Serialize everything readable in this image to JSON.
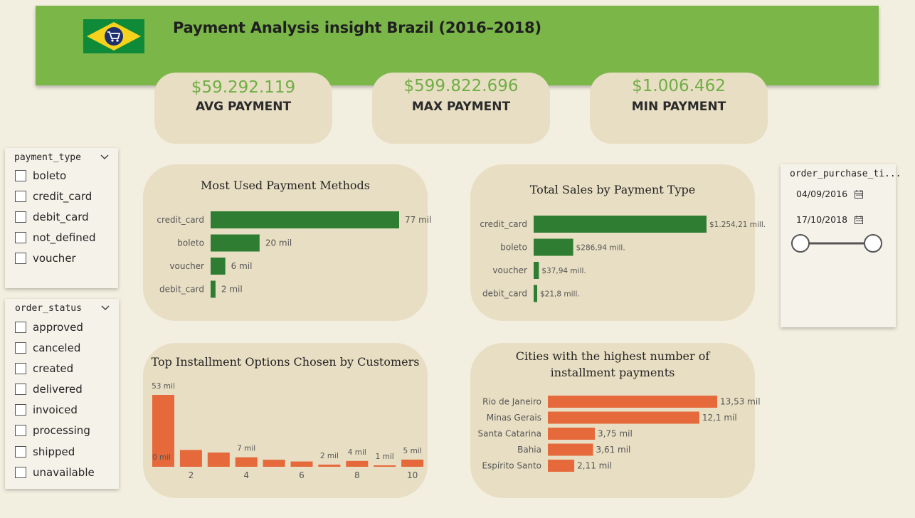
{
  "header": {
    "title": "Payment Analysis insight Brazil (2016–2018)",
    "flag_icon": "brazil-flag-shopping-cart-icon",
    "colors": {
      "banner": "#7ab648",
      "kpi_value": "#6fae45",
      "bar_green": "#2e7d32",
      "bar_orange": "#e5693a",
      "card": "#e8dec3",
      "page": "#f3efe0"
    }
  },
  "kpis": [
    {
      "value": "$59.292.119",
      "label": "AVG PAYMENT"
    },
    {
      "value": "$599.822.696",
      "label": "MAX PAYMENT"
    },
    {
      "value": "$1.006.462",
      "label": "MIN PAYMENT"
    }
  ],
  "filters": {
    "payment_type": {
      "title": "payment_type",
      "options": [
        "boleto",
        "credit_card",
        "debit_card",
        "not_defined",
        "voucher"
      ]
    },
    "order_status": {
      "title": "order_status",
      "options": [
        "approved",
        "canceled",
        "created",
        "delivered",
        "invoiced",
        "processing",
        "shipped",
        "unavailable"
      ]
    },
    "date_range": {
      "title": "order_purchase_ti...",
      "start": "04/09/2016",
      "end": "17/10/2018",
      "calendar_icon": "calendar-icon",
      "slider_position": [
        0,
        1
      ]
    }
  },
  "chart_data": [
    {
      "type": "bar",
      "orientation": "horizontal",
      "title": "Most Used Payment Methods",
      "categories": [
        "credit_card",
        "boleto",
        "voucher",
        "debit_card"
      ],
      "values": [
        77,
        20,
        6,
        2
      ],
      "data_labels": [
        "77 mil",
        "20 mil",
        "6 mil",
        "2 mil"
      ],
      "color": "#2e7d32"
    },
    {
      "type": "bar",
      "orientation": "horizontal",
      "title": "Total Sales by Payment Type",
      "categories": [
        "credit_card",
        "boleto",
        "voucher",
        "debit_card"
      ],
      "values": [
        1254.21,
        286.94,
        37.94,
        21.8
      ],
      "data_labels": [
        "$1.254,21 mill.",
        "$286,94 mill.",
        "$37,94 mill.",
        "$21,8 mill."
      ],
      "color": "#2e7d32"
    },
    {
      "type": "bar",
      "orientation": "vertical",
      "title": "Top Installment Options Chosen by Customers",
      "x": [
        1,
        2,
        3,
        4,
        5,
        6,
        7,
        8,
        9,
        10
      ],
      "values": [
        53,
        12.4,
        10.5,
        7,
        5.2,
        3.9,
        1.6,
        4.3,
        0.6,
        5.3
      ],
      "data_labels": [
        "53 mil",
        "",
        "",
        "7 mil",
        "",
        "",
        "2 mil",
        "4 mil",
        "1 mil",
        "5 mil"
      ],
      "x_ticks": [
        "2",
        "4",
        "6",
        "8",
        "10"
      ],
      "annotation": "0 mil",
      "color": "#e5693a"
    },
    {
      "type": "bar",
      "orientation": "horizontal",
      "title": "Cities with the highest number of installment payments",
      "categories": [
        "Rio de Janeiro",
        "Minas Gerais",
        "Santa Catarina",
        "Bahia",
        "Espírito Santo"
      ],
      "values": [
        13.53,
        12.1,
        3.75,
        3.61,
        2.11
      ],
      "data_labels": [
        "13,53 mil",
        "12,1 mil",
        "3,75 mil",
        "3,61 mil",
        "2,11 mil"
      ],
      "color": "#e5693a"
    }
  ]
}
